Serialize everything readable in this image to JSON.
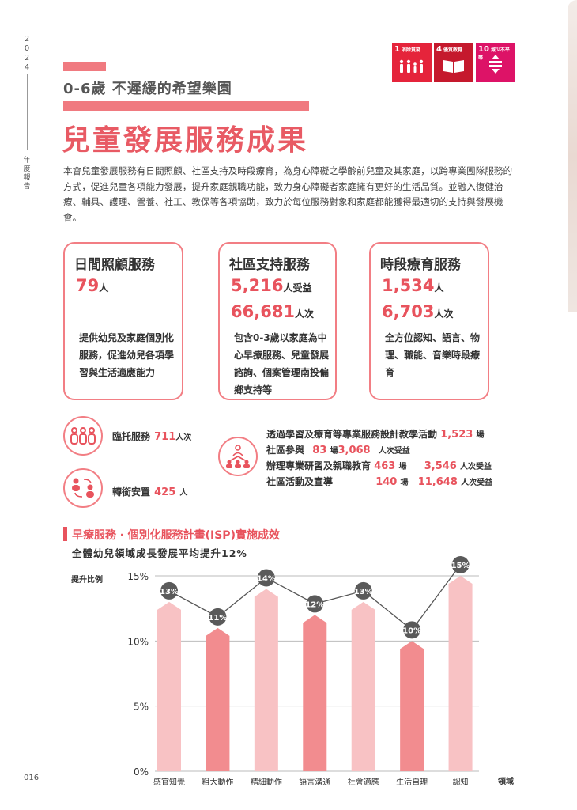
{
  "sidebar": {
    "year": "2024",
    "report": "年度報告",
    "page": "016"
  },
  "sdg": [
    {
      "num": "1",
      "label": "消除貧窮",
      "icon": "family-icon",
      "color": "#e5243b"
    },
    {
      "num": "4",
      "label": "優質教育",
      "icon": "book-icon",
      "color": "#c5192d"
    },
    {
      "num": "10",
      "label": "減少不平等",
      "icon": "equality-icon",
      "color": "#dd1367"
    }
  ],
  "header": {
    "subtitle": "0-6歲 不遲緩的希望樂園",
    "title": "兒童發展服務成果"
  },
  "intro": "本會兒童發展服務有日間照顧、社區支持及時段療育，為身心障礙之學齡前兒童及其家庭，以跨專業團隊服務的方式，促進兒童各項能力發展，提升家庭親職功能，致力身心障礙者家庭擁有更好的生活品質。並融入復健治療、輔具、護理、營養、社工、教保等各項協助，致力於每位服務對象和家庭都能獲得最適切的支持與發展機會。",
  "services": [
    {
      "title": "日間照顧服務",
      "lines": [
        {
          "num": "79",
          "unit": "人"
        }
      ],
      "desc": "提供幼兒及家庭個別化服務，促進幼兒各項學習與生活適應能力"
    },
    {
      "title": "社區支持服務",
      "lines": [
        {
          "num": "5,216",
          "unit": "人受益"
        },
        {
          "num": "66,681",
          "unit": "人次"
        }
      ],
      "desc": "包含0-3歲以家庭為中心早療服務、兒童發展諮詢、個案管理南投偏鄉支持等"
    },
    {
      "title": "時段療育服務",
      "lines": [
        {
          "num": "1,534",
          "unit": "人"
        },
        {
          "num": "6,703",
          "unit": "人次"
        }
      ],
      "desc": "全方位認知、語言、物理、職能、音樂時段療育"
    }
  ],
  "stats": {
    "daycare": {
      "label": "臨托服務",
      "num": "711",
      "unit": "人次"
    },
    "transition": {
      "label": "轉銜安置",
      "num": "425",
      "unit": "人"
    },
    "activities": {
      "line1": {
        "label": "透過學習及療育等專業服務設計教學活動",
        "num": "1,523",
        "unit": "場"
      },
      "line2": {
        "label": "社區參與",
        "num1": "83",
        "unit1": "場",
        "num2": "3,068",
        "unit2": "人次受益"
      },
      "line3": {
        "label": "辦理專業研習及親職教育",
        "num1": "463",
        "unit1": "場",
        "num2": "3,546",
        "unit2": "人次受益"
      },
      "line4": {
        "label": "社區活動及宣導",
        "num1": "140",
        "unit1": "場",
        "num2": "11,648",
        "unit2": "人次受益"
      }
    }
  },
  "chart_section": {
    "title": "早療服務 ‧ 個別化服務計畫(ISP)實施成效",
    "subtitle": "全體幼兒領域成長發展平均提升12%",
    "ylabel": "提升比例",
    "xlabel": "領域"
  },
  "chart_data": {
    "type": "bar",
    "title": "早療服務 ‧ 個別化服務計畫(ISP)實施成效",
    "xlabel": "領域",
    "ylabel": "提升比例",
    "categories": [
      "感官知覺",
      "粗大動作",
      "精細動作",
      "語言溝通",
      "社會適應",
      "生活自理",
      "認知"
    ],
    "values": [
      13,
      11,
      14,
      12,
      13,
      10,
      15
    ],
    "value_suffix": "%",
    "ylim": [
      0,
      15
    ],
    "yticks": [
      "0%",
      "5%",
      "10%",
      "15%"
    ],
    "ytick_values": [
      0,
      5,
      10,
      15
    ],
    "overlay": "line connecting values with circular labels",
    "grid": true,
    "colors": {
      "light": "#f8c2c4",
      "dark": "#f28c8f",
      "marker": "#5a5a5a",
      "line": "#555555"
    }
  }
}
